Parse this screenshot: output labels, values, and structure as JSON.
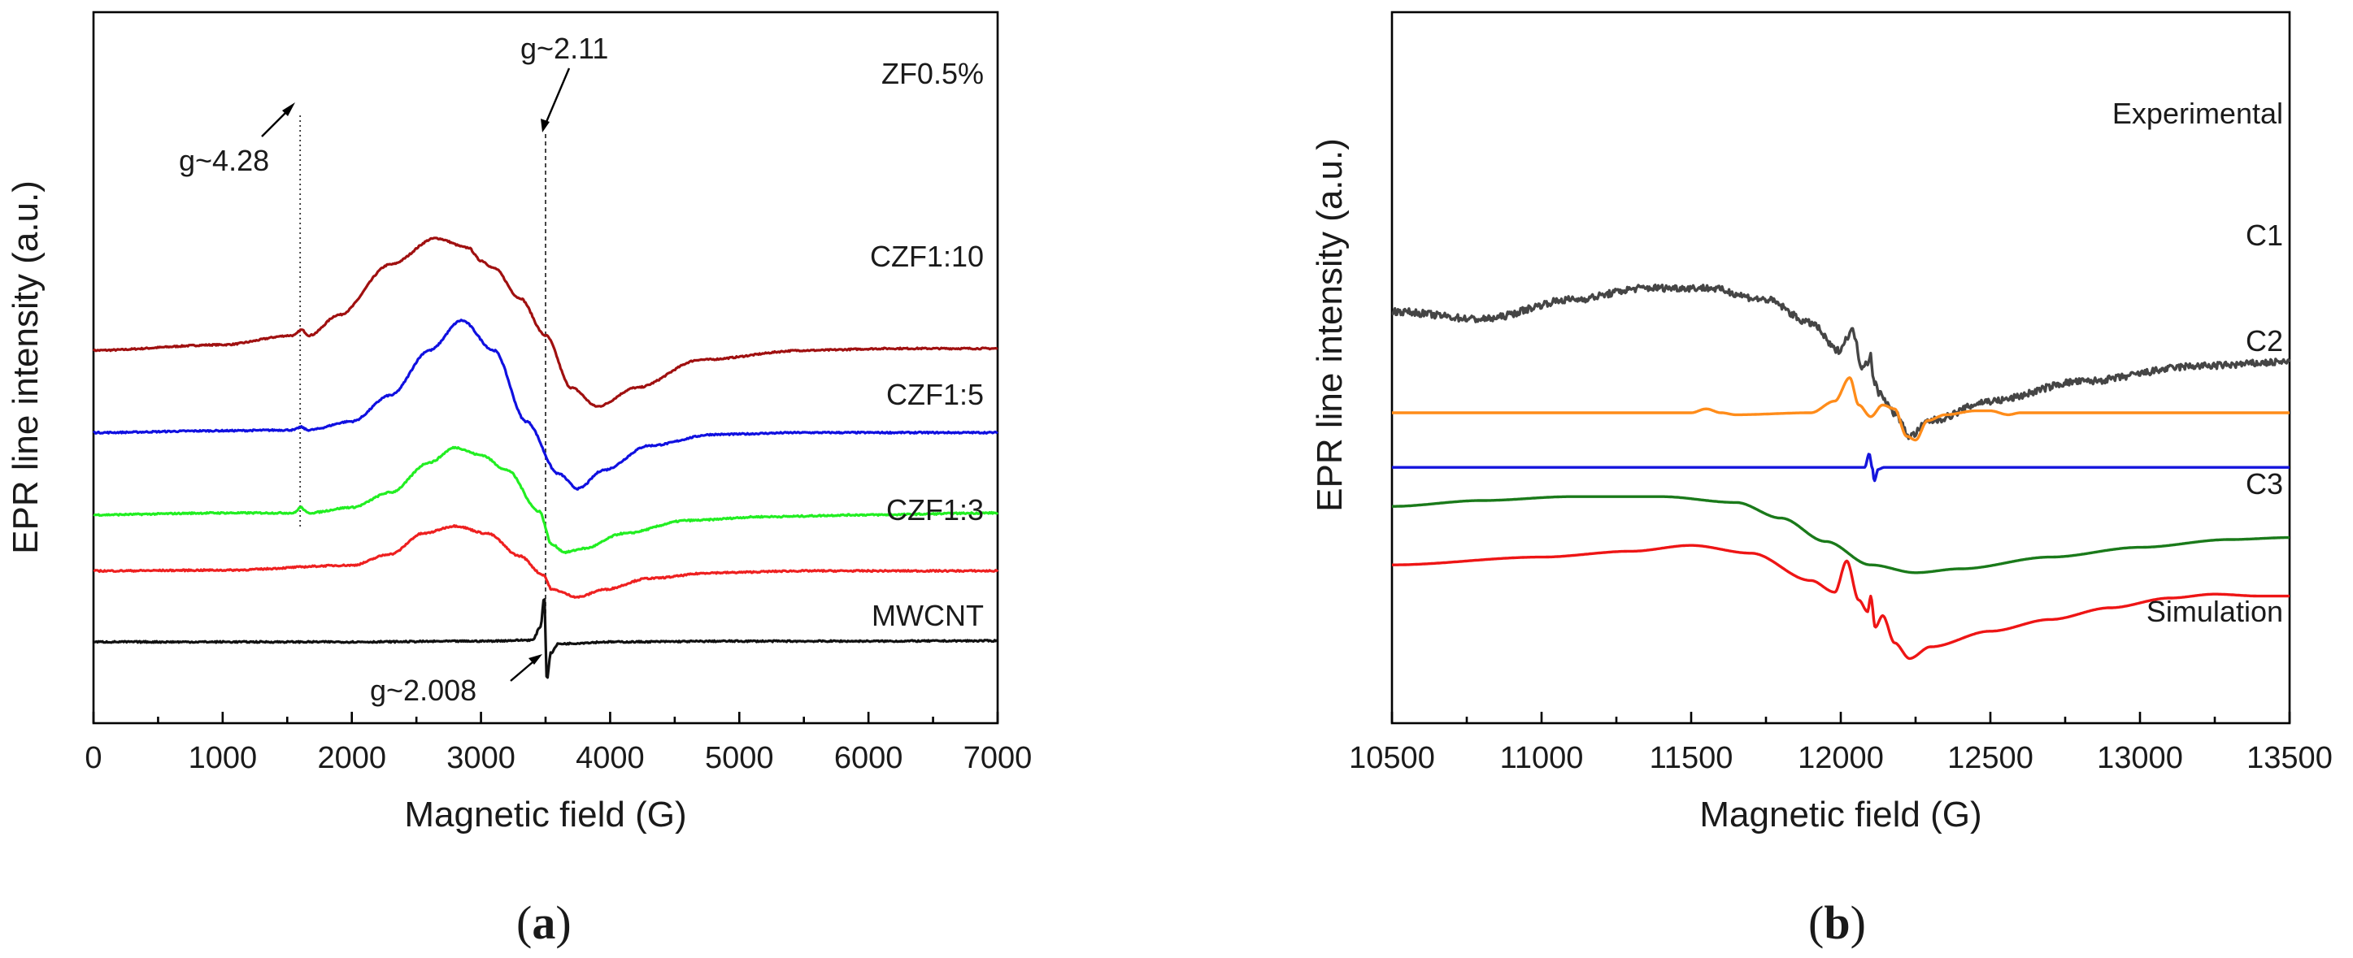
{
  "chart_data": [
    {
      "panel": "(a)",
      "panel_letter": "a",
      "type": "line",
      "xlabel": "Magnetic field (G)",
      "ylabel": "EPR line intensity (a.u.)",
      "xlim": [
        0,
        7000
      ],
      "xticks": [
        0,
        1000,
        2000,
        3000,
        4000,
        5000,
        6000,
        7000
      ],
      "xtick_labels": [
        "0",
        "1000",
        "2000",
        "3000",
        "4000",
        "5000",
        "6000",
        "7000"
      ],
      "y_unit": "arbitrary, vertically offset",
      "series": [
        {
          "name": "ZF0.5%",
          "color": "#a01010",
          "offset": 7.8,
          "baseline_left": 0,
          "baseline_right": 0.05,
          "x": [
            0,
            1000,
            1550,
            1610,
            1670,
            1900,
            2300,
            2650,
            2900,
            3000,
            3100,
            3300,
            3500,
            3700,
            3900,
            4200,
            4700,
            5500,
            6200,
            7000
          ],
          "y": [
            0,
            0.15,
            0.4,
            0.55,
            0.4,
            0.95,
            2.3,
            3.0,
            2.75,
            2.4,
            2.2,
            1.4,
            0.4,
            -1.0,
            -1.5,
            -1.0,
            -0.25,
            0.0,
            0.05,
            0.05
          ]
        },
        {
          "name": "CZF1:10",
          "color": "#1010e0",
          "offset": 5.6,
          "baseline_left": 0,
          "baseline_right": 0,
          "x": [
            0,
            1000,
            1550,
            1605,
            1660,
            2000,
            2300,
            2600,
            2850,
            3100,
            3350,
            3600,
            3750,
            3950,
            4300,
            4800,
            5500,
            7000
          ],
          "y": [
            0,
            0.05,
            0.07,
            0.15,
            0.07,
            0.3,
            1.0,
            2.2,
            3.0,
            2.2,
            0.3,
            -1.1,
            -1.5,
            -1.0,
            -0.35,
            -0.05,
            0,
            0
          ]
        },
        {
          "name": "CZF1:5",
          "color": "#22ee22",
          "offset": 3.4,
          "baseline_left": 0,
          "baseline_right": 0.05,
          "x": [
            0,
            1000,
            1550,
            1605,
            1660,
            2000,
            2300,
            2600,
            2800,
            3000,
            3200,
            3450,
            3550,
            3650,
            3800,
            4100,
            4600,
            5200,
            6000,
            7000
          ],
          "y": [
            0,
            0.05,
            0.05,
            0.2,
            0.05,
            0.2,
            0.6,
            1.4,
            1.8,
            1.6,
            1.2,
            0.1,
            -0.8,
            -1.0,
            -0.9,
            -0.5,
            -0.15,
            -0.05,
            0.0,
            0.05
          ]
        },
        {
          "name": "CZF1:3",
          "color": "#ee2020",
          "offset": 1.9,
          "baseline_left": 0,
          "baseline_right": 0,
          "x": [
            0,
            1000,
            2000,
            2300,
            2550,
            2800,
            3050,
            3300,
            3480,
            3550,
            3750,
            3950,
            4300,
            4800,
            5500,
            7000
          ],
          "y": [
            0,
            0.02,
            0.15,
            0.45,
            1.0,
            1.2,
            1.0,
            0.4,
            -0.1,
            -0.5,
            -0.7,
            -0.5,
            -0.2,
            -0.05,
            0,
            0
          ]
        },
        {
          "name": "MWCNT",
          "color": "#111111",
          "offset": 0.0,
          "baseline_left": 0,
          "baseline_right": 0.03,
          "x": [
            0,
            1000,
            2000,
            3000,
            3400,
            3460,
            3490,
            3510,
            3540,
            3600,
            4000,
            5000,
            6000,
            7000
          ],
          "y": [
            0,
            0.0,
            0.0,
            0.02,
            0.05,
            0.4,
            1.2,
            -1.0,
            -0.3,
            -0.05,
            0.0,
            0.02,
            0.02,
            0.03
          ]
        }
      ],
      "annotations": [
        {
          "text": "g~4.28",
          "x": 1600
        },
        {
          "text": "g~2.11",
          "x": 3500
        },
        {
          "text": "g~2.008",
          "x": 3500
        }
      ],
      "guide_lines_x": [
        1600,
        3500
      ]
    },
    {
      "panel": "(b)",
      "panel_letter": "b",
      "type": "line",
      "xlabel": "Magnetic field (G)",
      "ylabel": "EPR line intensity (a.u.)",
      "xlim": [
        10500,
        13500
      ],
      "xticks": [
        10500,
        11000,
        11500,
        12000,
        12500,
        13000,
        13500
      ],
      "xtick_labels": [
        "10500",
        "11000",
        "11500",
        "12000",
        "12500",
        "13000",
        "13500"
      ],
      "y_unit": "arbitrary, vertically offset",
      "series": [
        {
          "name": "Experimental",
          "color": "#454545",
          "offset": 6.8,
          "noise": 0.09,
          "x": [
            10500,
            10800,
            11100,
            11350,
            11550,
            11750,
            11900,
            11990,
            12040,
            12070,
            12090,
            12100,
            12110,
            12130,
            12180,
            12230,
            12300,
            12500,
            12800,
            13200,
            13500
          ],
          "y": [
            0.8,
            0.6,
            1.1,
            1.4,
            1.4,
            1.1,
            0.5,
            -0.2,
            0.3,
            -0.6,
            -0.5,
            -0.3,
            -1.0,
            -1.3,
            -1.8,
            -2.4,
            -2.0,
            -1.5,
            -1.0,
            -0.6,
            -0.5
          ]
        },
        {
          "name": "C1",
          "color": "#ff8c1a",
          "offset": 5.0,
          "x": [
            10500,
            11000,
            11500,
            11550,
            11600,
            11650,
            11900,
            11980,
            12030,
            12060,
            12100,
            12140,
            12180,
            12220,
            12250,
            12290,
            12350,
            12450,
            12500,
            12560,
            12600,
            13000,
            13500
          ],
          "y": [
            0,
            0,
            0,
            0.1,
            0,
            -0.05,
            0,
            0.3,
            0.9,
            0.2,
            -0.1,
            0.2,
            0.1,
            -0.6,
            -0.7,
            -0.2,
            -0.05,
            0.05,
            0.05,
            -0.05,
            0,
            0,
            0
          ]
        },
        {
          "name": "C2",
          "color": "#1515dd",
          "offset": 3.6,
          "x": [
            10500,
            12080,
            12095,
            12105,
            12112,
            12125,
            12145,
            13500
          ],
          "y": [
            0,
            0,
            0.35,
            0,
            -0.35,
            -0.05,
            0,
            0
          ]
        },
        {
          "name": "C3",
          "color": "#1a7a1a",
          "offset": 1.9,
          "x": [
            10500,
            10800,
            11100,
            11400,
            11650,
            11800,
            11950,
            12100,
            12250,
            12400,
            12700,
            13000,
            13300,
            13500
          ],
          "y": [
            0.7,
            0.85,
            0.95,
            0.95,
            0.8,
            0.4,
            -0.2,
            -0.8,
            -1.0,
            -0.9,
            -0.6,
            -0.35,
            -0.15,
            -0.1
          ]
        },
        {
          "name": "Simulation",
          "color": "#ee1515",
          "offset": 0.0,
          "x": [
            10500,
            11000,
            11300,
            11500,
            11700,
            11900,
            11980,
            12020,
            12060,
            12090,
            12100,
            12115,
            12140,
            12180,
            12230,
            12300,
            12500,
            12700,
            12900,
            13100,
            13250,
            13400,
            13500
          ],
          "y": [
            1.1,
            1.3,
            1.45,
            1.6,
            1.4,
            0.7,
            0.4,
            1.2,
            0.2,
            -0.1,
            0.3,
            -0.5,
            -0.2,
            -0.9,
            -1.3,
            -1.0,
            -0.6,
            -0.3,
            0.0,
            0.25,
            0.35,
            0.3,
            0.3
          ]
        }
      ]
    }
  ]
}
